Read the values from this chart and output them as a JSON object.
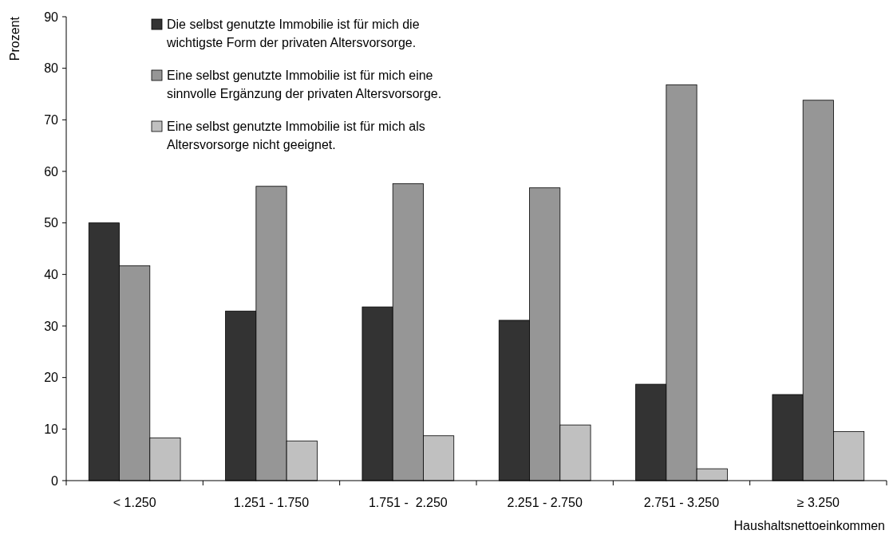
{
  "chart_data": {
    "type": "bar",
    "xlabel": "Haushaltsnettoeinkommen",
    "ylabel": "Prozent",
    "categories": [
      "< 1.250",
      "1.251 - 1.750",
      "1.751 -  2.250",
      "2.251 - 2.750",
      "2.751 - 3.250",
      "≥ 3.250"
    ],
    "series": [
      {
        "name": "Die selbst genutzte Immobilie ist für mich die wichtigste Form der privaten Altersvorsorge.",
        "color": "#333333",
        "values": [
          50.0,
          32.9,
          33.7,
          31.1,
          18.7,
          16.7
        ]
      },
      {
        "name": "Eine selbst genutzte Immobilie ist für mich eine sinnvolle Ergänzung der privaten Altersvorsorge.",
        "color": "#969696",
        "values": [
          41.7,
          57.1,
          57.6,
          56.8,
          76.8,
          73.8
        ]
      },
      {
        "name": "Eine selbst genutzte Immobilie ist für mich als Altersvorsorge nicht geeignet.",
        "color": "#c0c0c0",
        "values": [
          8.3,
          7.7,
          8.7,
          10.8,
          2.3,
          9.5
        ]
      }
    ],
    "ylim": [
      0,
      90
    ],
    "yticks": [
      0,
      10,
      20,
      30,
      40,
      50,
      60,
      70,
      80,
      90
    ],
    "grid": false,
    "legend": "top left"
  }
}
